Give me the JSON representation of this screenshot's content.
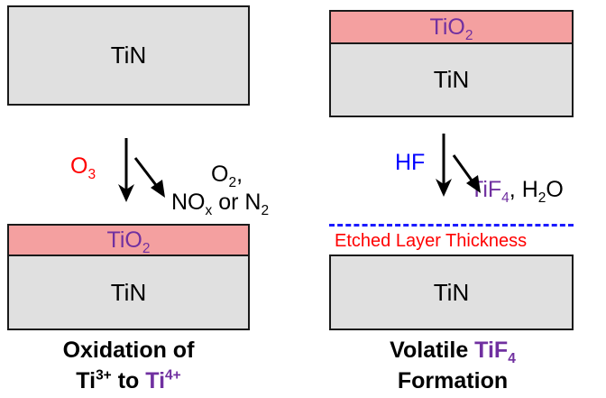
{
  "left": {
    "top_box_label": "TiN",
    "reactant": {
      "base": "O",
      "sub": "3"
    },
    "products_line1": "O₂,",
    "products_line1_base": "O",
    "products_line1_sub": "2",
    "products_line1_tail": ",",
    "products_line2": {
      "a": "NO",
      "a_sub": "x",
      "b": " or N",
      "b_sub": "2"
    },
    "oxide_label": {
      "base": "TiO",
      "sub": "2"
    },
    "bottom_box_label": "TiN",
    "caption_line1": "Oxidation of",
    "caption_line2": {
      "a": "Ti",
      "a_sup": "3+",
      "b": " to ",
      "c": "Ti",
      "c_sup": "4+"
    }
  },
  "right": {
    "oxide_label": {
      "base": "TiO",
      "sub": "2"
    },
    "top_box_label": "TiN",
    "reactant": "HF",
    "products": {
      "a": "TiF",
      "a_sub": "4",
      "b": ", H",
      "b_sub": "2",
      "c": "O"
    },
    "etched_label": "Etched Layer Thickness",
    "bottom_box_label": "TiN",
    "caption_line1": {
      "a": "Volatile ",
      "b": "TiF",
      "b_sub": "4"
    },
    "caption_line2": "Formation"
  },
  "colors": {
    "box_fill": "#e0e0e0",
    "oxide_fill": "#f4a0a0",
    "oxide_text": "#7030a0",
    "red": "#ff0000",
    "blue": "#0000ff",
    "etch_line": "#1a1aff"
  }
}
